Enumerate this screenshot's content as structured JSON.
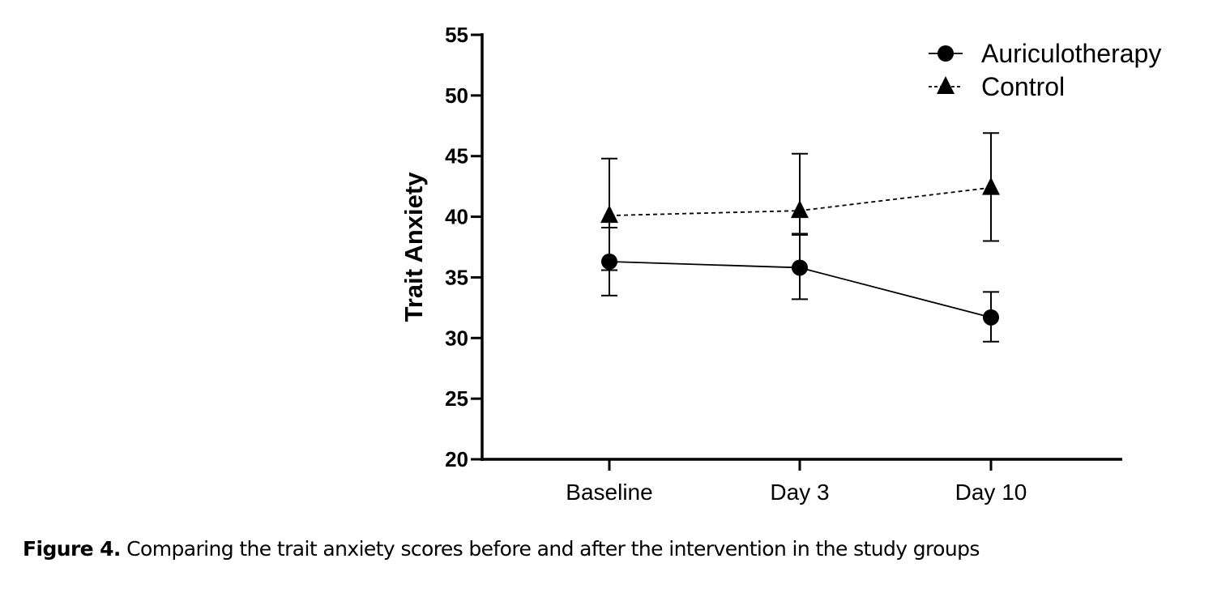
{
  "chart_data": {
    "type": "line",
    "title": "",
    "xlabel": "",
    "ylabel": "Trait Anxiety",
    "categories": [
      "Baseline",
      "Day 3",
      "Day 10"
    ],
    "ylim": [
      20,
      55
    ],
    "yticks": [
      20,
      25,
      30,
      35,
      40,
      45,
      50,
      55
    ],
    "grid": false,
    "legend_position": "top-right",
    "series": [
      {
        "name": "Auriculotherapy",
        "marker": "circle",
        "line_style": "solid",
        "values": [
          36.3,
          35.8,
          31.7
        ],
        "error_upper": [
          39.1,
          38.5,
          33.8
        ],
        "error_lower": [
          33.5,
          33.2,
          29.7
        ]
      },
      {
        "name": "Control",
        "marker": "triangle",
        "line_style": "dashed",
        "values": [
          40.1,
          40.5,
          42.4
        ],
        "error_upper": [
          44.8,
          45.2,
          46.9
        ],
        "error_lower": [
          35.6,
          38.6,
          38.0
        ]
      }
    ]
  },
  "caption": {
    "label": "Figure 4.",
    "text": " Comparing the trait anxiety scores before and after the intervention in the study groups"
  },
  "colors": {
    "ink": "#000000",
    "background": "#ffffff"
  }
}
